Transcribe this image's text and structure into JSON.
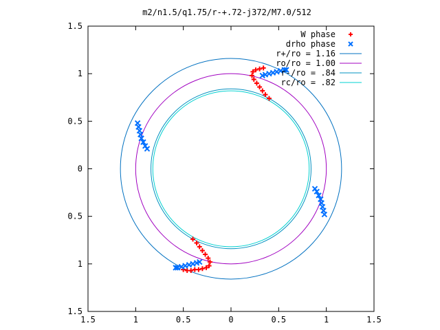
{
  "chart_data": {
    "type": "scatter",
    "title": "m2/n1.5/q1.75/r-+.72-j372/M7.0/512",
    "xlim": [
      -1.5,
      1.5
    ],
    "ylim": [
      -1.5,
      1.5
    ],
    "x_tick_values": [
      -1.5,
      -1,
      -0.5,
      0,
      0.5,
      1,
      1.5
    ],
    "y_tick_values": [
      -1.5,
      -1,
      -0.5,
      0,
      0.5,
      1,
      1.5
    ],
    "x_tick_labels": [
      "1.5",
      "1",
      "0.5",
      "0",
      "0.5",
      "1",
      "1.5"
    ],
    "y_tick_labels": [
      "1.5",
      "1",
      "0.5",
      "0",
      "0.5",
      "1",
      "1.5"
    ],
    "grid": false,
    "legend_position": "top-right",
    "circles": [
      {
        "name": "r+/ro = 1.16",
        "radius": 1.16,
        "color": "#0070c0"
      },
      {
        "name": "ro/ro = 1.00",
        "radius": 1.0,
        "color": "#a000c0"
      },
      {
        "name": "r-/ro = .84",
        "radius": 0.84,
        "color": "#0090c0"
      },
      {
        "name": "rc/ro = .82",
        "radius": 0.82,
        "color": "#00d0d0"
      }
    ],
    "series": [
      {
        "name": "W phase",
        "marker": "+",
        "color": "#ff0000",
        "points": [
          [
            0.4,
            0.74
          ],
          [
            0.36,
            0.78
          ],
          [
            0.33,
            0.82
          ],
          [
            0.3,
            0.86
          ],
          [
            0.27,
            0.9
          ],
          [
            0.24,
            0.94
          ],
          [
            0.22,
            0.98
          ],
          [
            0.23,
            1.02
          ],
          [
            0.26,
            1.04
          ],
          [
            0.3,
            1.05
          ],
          [
            0.34,
            1.06
          ],
          [
            -0.4,
            -0.74
          ],
          [
            -0.36,
            -0.78
          ],
          [
            -0.33,
            -0.82
          ],
          [
            -0.3,
            -0.86
          ],
          [
            -0.27,
            -0.9
          ],
          [
            -0.24,
            -0.94
          ],
          [
            -0.22,
            -0.98
          ],
          [
            -0.23,
            -1.02
          ],
          [
            -0.26,
            -1.04
          ],
          [
            -0.3,
            -1.05
          ],
          [
            -0.34,
            -1.06
          ],
          [
            -0.38,
            -1.06
          ],
          [
            -0.42,
            -1.07
          ],
          [
            -0.46,
            -1.07
          ],
          [
            -0.5,
            -1.06
          ]
        ]
      },
      {
        "name": "drho phase",
        "marker": "x",
        "color": "#0070ff",
        "points": [
          [
            0.33,
            0.98
          ],
          [
            0.36,
            0.99
          ],
          [
            0.4,
            1.0
          ],
          [
            0.44,
            1.01
          ],
          [
            0.48,
            1.02
          ],
          [
            0.52,
            1.03
          ],
          [
            0.56,
            1.04
          ],
          [
            0.58,
            1.04
          ],
          [
            -0.33,
            -0.98
          ],
          [
            -0.36,
            -0.99
          ],
          [
            -0.4,
            -1.0
          ],
          [
            -0.44,
            -1.01
          ],
          [
            -0.48,
            -1.02
          ],
          [
            -0.52,
            -1.03
          ],
          [
            -0.56,
            -1.04
          ],
          [
            -0.58,
            -1.04
          ],
          [
            -0.98,
            0.48
          ],
          [
            -0.97,
            0.44
          ],
          [
            -0.96,
            0.4
          ],
          [
            -0.95,
            0.36
          ],
          [
            -0.94,
            0.32
          ],
          [
            -0.92,
            0.28
          ],
          [
            -0.9,
            0.24
          ],
          [
            -0.88,
            0.21
          ],
          [
            0.98,
            -0.48
          ],
          [
            0.97,
            -0.44
          ],
          [
            0.96,
            -0.4
          ],
          [
            0.95,
            -0.36
          ],
          [
            0.94,
            -0.32
          ],
          [
            0.92,
            -0.28
          ],
          [
            0.9,
            -0.24
          ],
          [
            0.88,
            -0.21
          ]
        ]
      }
    ]
  }
}
